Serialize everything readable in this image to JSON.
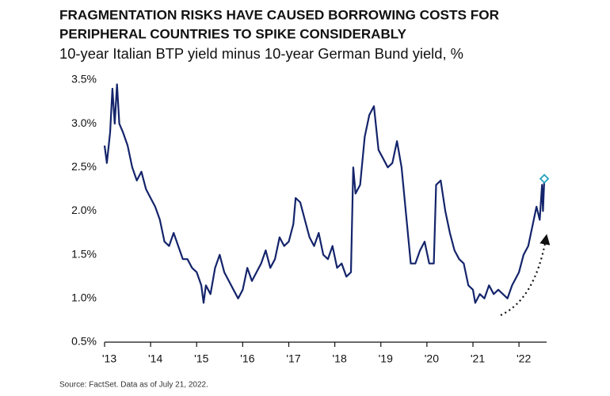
{
  "chart_data": {
    "type": "line",
    "title": [
      "FRAGMENTATION RISKS HAVE CAUSED BORROWING COSTS FOR",
      "PERIPHERAL COUNTRIES TO SPIKE CONSIDERABLY"
    ],
    "subtitle": "10-year Italian BTP yield minus 10-year German Bund yield, %",
    "source": "Source: FactSet. Data as of July 21, 2022.",
    "color": "#14246b",
    "marker_color": "#2aa3c0",
    "xlim": [
      2013,
      2022.6
    ],
    "ylim": [
      0.5,
      3.5
    ],
    "xticks": [
      {
        "value": 2013,
        "label": "'13"
      },
      {
        "value": 2014,
        "label": "'14"
      },
      {
        "value": 2015,
        "label": "'15"
      },
      {
        "value": 2016,
        "label": "'16"
      },
      {
        "value": 2017,
        "label": "'17"
      },
      {
        "value": 2018,
        "label": "'18"
      },
      {
        "value": 2019,
        "label": "'19"
      },
      {
        "value": 2020,
        "label": "'20"
      },
      {
        "value": 2021,
        "label": "'21"
      },
      {
        "value": 2022,
        "label": "'22"
      }
    ],
    "yticks": [
      {
        "value": 0.5,
        "label": "0.5%"
      },
      {
        "value": 1.0,
        "label": "1.0%"
      },
      {
        "value": 1.5,
        "label": "1.5%"
      },
      {
        "value": 2.0,
        "label": "2.0%"
      },
      {
        "value": 2.5,
        "label": "2.5%"
      },
      {
        "value": 3.0,
        "label": "3.0%"
      },
      {
        "value": 3.5,
        "label": "3.5%"
      }
    ],
    "grid": false,
    "x": [
      2013.0,
      2013.05,
      2013.12,
      2013.17,
      2013.22,
      2013.27,
      2013.32,
      2013.4,
      2013.5,
      2013.6,
      2013.7,
      2013.8,
      2013.9,
      2014.0,
      2014.1,
      2014.2,
      2014.3,
      2014.4,
      2014.5,
      2014.6,
      2014.7,
      2014.8,
      2014.9,
      2015.0,
      2015.1,
      2015.15,
      2015.2,
      2015.3,
      2015.4,
      2015.5,
      2015.6,
      2015.7,
      2015.8,
      2015.9,
      2016.0,
      2016.1,
      2016.2,
      2016.3,
      2016.4,
      2016.5,
      2016.6,
      2016.7,
      2016.8,
      2016.9,
      2017.0,
      2017.1,
      2017.15,
      2017.25,
      2017.35,
      2017.45,
      2017.55,
      2017.65,
      2017.75,
      2017.85,
      2017.95,
      2018.05,
      2018.15,
      2018.25,
      2018.35,
      2018.4,
      2018.45,
      2018.55,
      2018.65,
      2018.75,
      2018.85,
      2018.95,
      2019.05,
      2019.15,
      2019.25,
      2019.35,
      2019.45,
      2019.55,
      2019.65,
      2019.75,
      2019.85,
      2019.95,
      2020.05,
      2020.15,
      2020.2,
      2020.3,
      2020.4,
      2020.5,
      2020.6,
      2020.7,
      2020.8,
      2020.9,
      2021.0,
      2021.05,
      2021.15,
      2021.25,
      2021.35,
      2021.45,
      2021.55,
      2021.65,
      2021.75,
      2021.85,
      2022.0,
      2022.1,
      2022.2,
      2022.3,
      2022.38,
      2022.45,
      2022.5,
      2022.52,
      2022.55
    ],
    "values": [
      2.75,
      2.55,
      2.9,
      3.4,
      3.0,
      3.45,
      3.0,
      2.9,
      2.75,
      2.5,
      2.35,
      2.45,
      2.25,
      2.15,
      2.05,
      1.9,
      1.65,
      1.6,
      1.75,
      1.6,
      1.45,
      1.45,
      1.35,
      1.3,
      1.15,
      0.95,
      1.15,
      1.05,
      1.35,
      1.5,
      1.3,
      1.2,
      1.1,
      1.0,
      1.1,
      1.35,
      1.2,
      1.3,
      1.4,
      1.55,
      1.35,
      1.45,
      1.7,
      1.6,
      1.65,
      1.85,
      2.15,
      2.1,
      1.9,
      1.7,
      1.6,
      1.75,
      1.5,
      1.45,
      1.6,
      1.35,
      1.4,
      1.25,
      1.3,
      2.5,
      2.2,
      2.3,
      2.85,
      3.1,
      3.2,
      2.7,
      2.6,
      2.5,
      2.55,
      2.8,
      2.5,
      1.95,
      1.4,
      1.4,
      1.55,
      1.65,
      1.4,
      1.4,
      2.3,
      2.35,
      2.0,
      1.75,
      1.55,
      1.45,
      1.4,
      1.15,
      1.1,
      0.95,
      1.05,
      1.0,
      1.15,
      1.05,
      1.1,
      1.05,
      1.0,
      1.15,
      1.3,
      1.5,
      1.6,
      1.85,
      2.05,
      1.9,
      2.3,
      2.0,
      2.37
    ]
  }
}
